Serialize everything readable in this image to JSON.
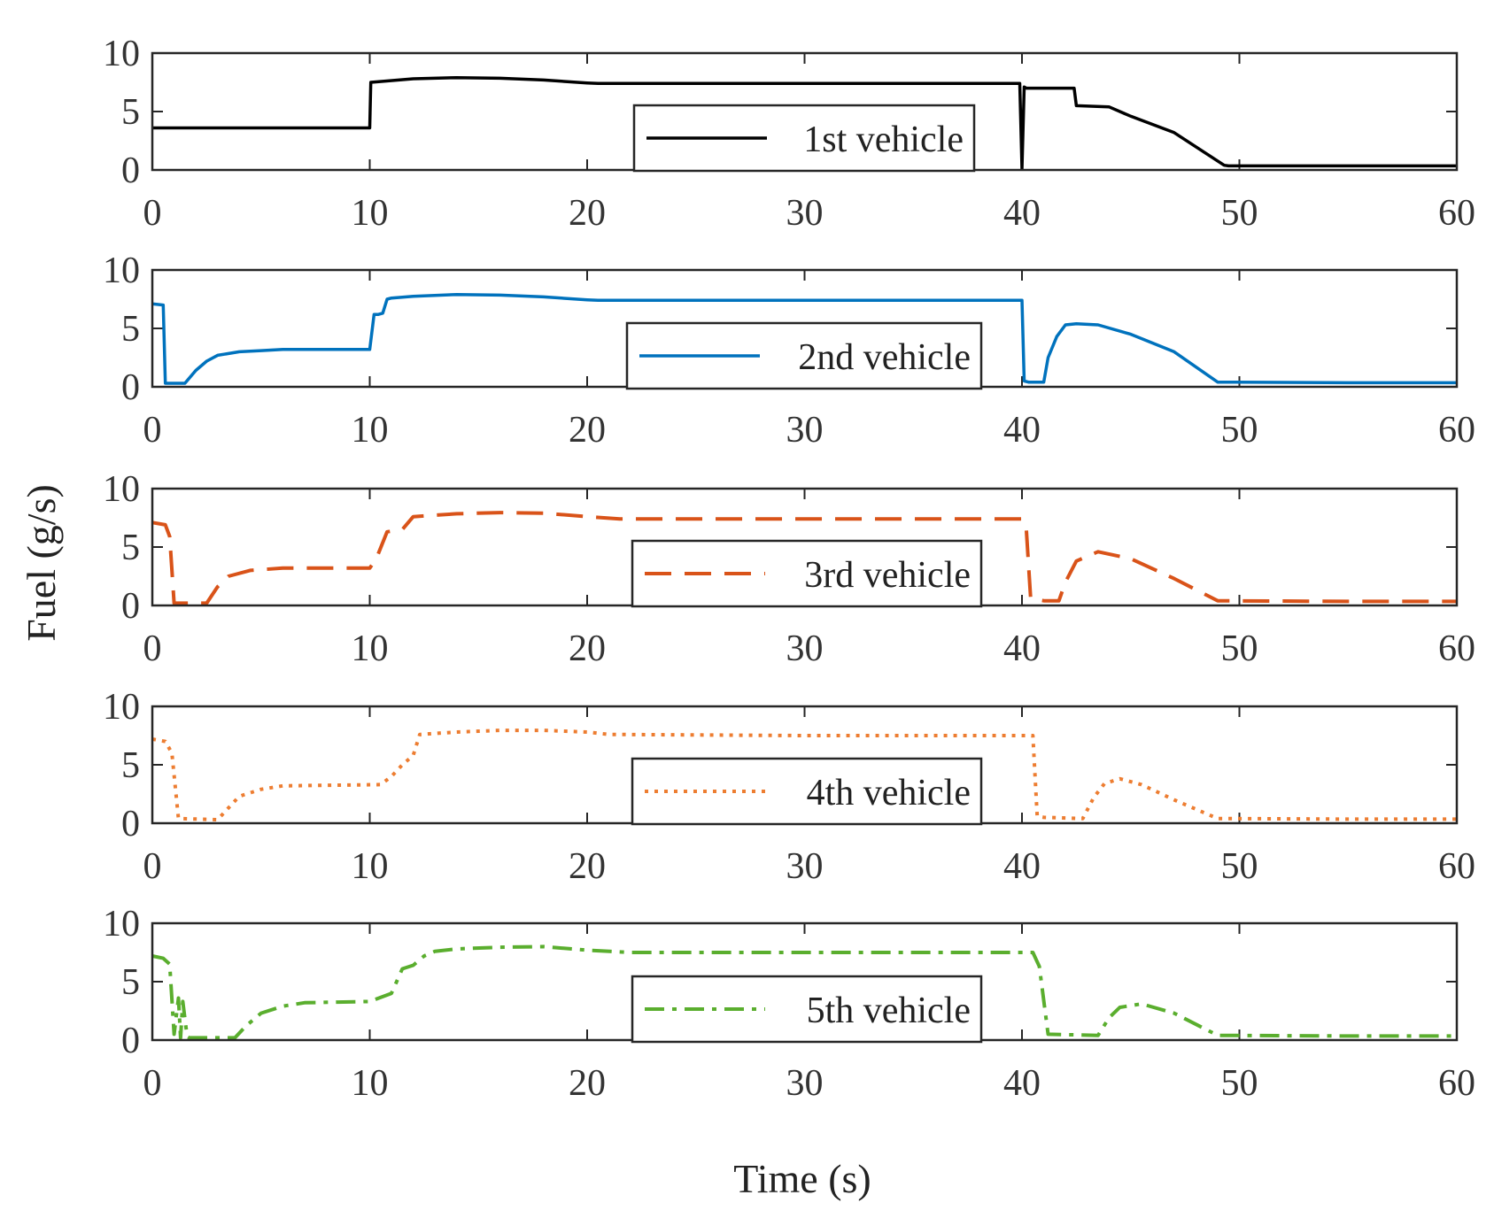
{
  "chart_data": {
    "type": "line",
    "layout": "5 stacked subplots sharing x axis",
    "xlabel": "Time (s)",
    "ylabel": "Fuel (g/s)",
    "xlim": [
      0,
      60
    ],
    "ylim": [
      0,
      10
    ],
    "xticks": [
      "0",
      "10",
      "20",
      "30",
      "40",
      "50",
      "60"
    ],
    "yticks": [
      "0",
      "5",
      "10"
    ],
    "series": [
      {
        "name": "1st vehicle",
        "color": "#000000",
        "style": "solid",
        "legend_position": "bottom-center",
        "x": [
          0,
          10,
          10.05,
          12,
          14,
          16,
          18,
          20,
          20.5,
          30,
          39.6,
          39.9,
          40.0,
          40.1,
          40.2,
          42.4,
          42.5,
          44,
          45,
          47,
          49.3,
          49.5,
          55,
          60
        ],
        "y": [
          3.6,
          3.6,
          7.5,
          7.8,
          7.9,
          7.85,
          7.7,
          7.45,
          7.4,
          7.4,
          7.4,
          7.4,
          0.1,
          7.1,
          7.0,
          7.0,
          5.5,
          5.4,
          4.6,
          3.2,
          0.4,
          0.35,
          0.35,
          0.35
        ]
      },
      {
        "name": "2nd vehicle",
        "color": "#0072BD",
        "style": "solid",
        "legend_position": "bottom-center",
        "x": [
          0,
          0.5,
          0.6,
          1.5,
          2,
          2.5,
          3,
          4,
          5,
          6,
          10,
          10.2,
          10.4,
          10.6,
          10.8,
          11,
          12,
          14,
          16,
          18,
          20,
          20.5,
          30,
          40,
          40.1,
          40.3,
          41,
          41.2,
          41.6,
          42,
          42.5,
          43.5,
          45,
          47,
          49,
          55,
          60
        ],
        "y": [
          7.1,
          7.0,
          0.3,
          0.3,
          1.4,
          2.2,
          2.7,
          3.0,
          3.1,
          3.2,
          3.2,
          6.2,
          6.2,
          6.3,
          7.5,
          7.6,
          7.75,
          7.9,
          7.85,
          7.7,
          7.45,
          7.4,
          7.4,
          7.4,
          0.5,
          0.4,
          0.4,
          2.5,
          4.3,
          5.3,
          5.4,
          5.3,
          4.5,
          3.0,
          0.4,
          0.35,
          0.35
        ]
      },
      {
        "name": "3rd vehicle",
        "color": "#D95319",
        "style": "dashed",
        "legend_position": "bottom-center",
        "x": [
          0,
          0.6,
          0.8,
          1.0,
          2.5,
          3,
          3.5,
          4.5,
          6,
          10,
          10.3,
          10.8,
          11.5,
          12,
          14,
          16,
          18,
          20,
          21.5,
          30,
          40,
          40.2,
          40.4,
          41,
          41.7,
          42,
          42.5,
          43.5,
          45,
          47,
          49,
          55,
          60
        ],
        "y": [
          7.1,
          6.9,
          5.9,
          0.2,
          0.2,
          1.6,
          2.5,
          3.0,
          3.2,
          3.2,
          4.0,
          6.3,
          6.5,
          7.6,
          7.85,
          7.95,
          7.9,
          7.6,
          7.4,
          7.4,
          7.4,
          6.5,
          0.6,
          0.4,
          0.4,
          2.0,
          3.8,
          4.6,
          4.0,
          2.3,
          0.4,
          0.35,
          0.35
        ]
      },
      {
        "name": "4th vehicle",
        "color": "#ED7D31",
        "style": "dotted",
        "legend_position": "bottom-center",
        "x": [
          0,
          0.6,
          0.9,
          1.2,
          3,
          3.5,
          4,
          5,
          6,
          10.5,
          11,
          11.5,
          12,
          12.3,
          14,
          16,
          18,
          20,
          21,
          30,
          40.5,
          40.7,
          41,
          42.8,
          43.3,
          43.8,
          44.5,
          45.5,
          47,
          49,
          55,
          60
        ],
        "y": [
          7.2,
          7.0,
          6.0,
          0.4,
          0.3,
          1.3,
          2.3,
          2.9,
          3.2,
          3.3,
          4.0,
          5.0,
          5.8,
          7.6,
          7.8,
          7.95,
          7.95,
          7.8,
          7.6,
          7.5,
          7.5,
          0.6,
          0.5,
          0.4,
          2.2,
          3.4,
          3.8,
          3.3,
          2.0,
          0.4,
          0.35,
          0.35
        ]
      },
      {
        "name": "5th vehicle",
        "color": "#5AAE2E",
        "style": "dash-dot",
        "legend_position": "bottom-center",
        "x": [
          0,
          0.5,
          0.8,
          1.0,
          1.2,
          1.3,
          1.4,
          1.6,
          1.7,
          3.8,
          4.3,
          5,
          6,
          7,
          10,
          11,
          11.5,
          12,
          12.5,
          13,
          14,
          16,
          18,
          20,
          22,
          30,
          40.5,
          40.8,
          41.2,
          43.5,
          44,
          44.5,
          45.5,
          47,
          49,
          55,
          60
        ],
        "y": [
          7.2,
          7.0,
          6.5,
          0.5,
          3.6,
          0.2,
          3.3,
          0.3,
          0.2,
          0.2,
          1.2,
          2.3,
          2.9,
          3.2,
          3.3,
          4.0,
          6.1,
          6.4,
          7.2,
          7.6,
          7.8,
          7.95,
          8.0,
          7.7,
          7.5,
          7.5,
          7.5,
          6.3,
          0.5,
          0.4,
          1.9,
          2.8,
          3.1,
          2.3,
          0.4,
          0.35,
          0.35
        ]
      }
    ]
  }
}
